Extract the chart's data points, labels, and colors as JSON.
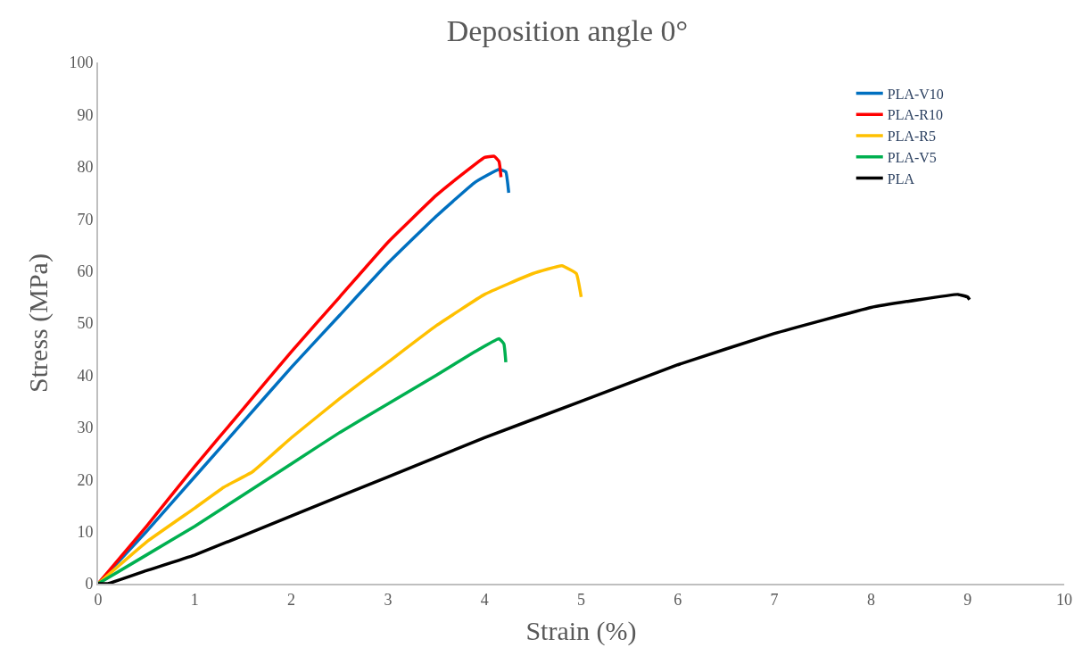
{
  "chart_data": {
    "type": "line",
    "title": "Deposition angle 0°",
    "xlabel": "Strain (%)",
    "ylabel": "Stress (MPa)",
    "xlim": [
      0,
      10
    ],
    "xticks": [
      0,
      1,
      2,
      3,
      4,
      5,
      6,
      7,
      8,
      9,
      10
    ],
    "ylim": [
      0,
      100
    ],
    "yticks": [
      0,
      10,
      20,
      30,
      40,
      50,
      60,
      70,
      80,
      90,
      100
    ],
    "grid": false,
    "legend": "top right",
    "marker": "none",
    "line_style": "solid",
    "series": [
      {
        "name": "PLA-V10",
        "color": "#0070c0",
        "x": [
          0,
          0.5,
          1,
          1.5,
          2,
          2.5,
          3,
          3.5,
          3.9,
          4.15,
          4.22,
          4.25
        ],
        "values": [
          0,
          10,
          20.5,
          31,
          41.5,
          51.5,
          61.5,
          70.5,
          77,
          79.5,
          79,
          75
        ]
      },
      {
        "name": "PLA-R10",
        "color": "#ff0000",
        "x": [
          0,
          0.5,
          1,
          1.5,
          2,
          2.5,
          3,
          3.5,
          3.8,
          4.0,
          4.1,
          4.15,
          4.17
        ],
        "values": [
          0,
          11,
          22.5,
          33.5,
          44.5,
          55,
          65.5,
          74.5,
          79,
          81.8,
          82,
          81,
          78
        ]
      },
      {
        "name": "PLA-R5",
        "color": "#ffc000",
        "x": [
          0,
          0.5,
          1,
          1.3,
          1.6,
          2,
          2.5,
          3,
          3.5,
          4,
          4.5,
          4.8,
          4.95,
          5.0
        ],
        "values": [
          0,
          8,
          14.5,
          18.5,
          21.5,
          28,
          35.5,
          42.5,
          49.5,
          55.5,
          59.5,
          61,
          59.5,
          55
        ]
      },
      {
        "name": "PLA-V5",
        "color": "#00b050",
        "x": [
          0,
          0.5,
          1,
          1.5,
          2,
          2.5,
          3,
          3.5,
          3.9,
          4.15,
          4.2,
          4.22
        ],
        "values": [
          0,
          5.5,
          11,
          17,
          23,
          29,
          34.5,
          40,
          44.5,
          47,
          46,
          42.5
        ]
      },
      {
        "name": "PLA",
        "color": "#000000",
        "x": [
          0,
          0.1,
          0.5,
          1,
          2,
          3,
          4,
          5,
          6,
          7,
          8,
          8.5,
          8.9,
          9.0,
          9.02
        ],
        "values": [
          0,
          0,
          2.5,
          5.5,
          13,
          20.5,
          28,
          35,
          42,
          48,
          53,
          54.5,
          55.5,
          55,
          54.5
        ]
      }
    ]
  }
}
